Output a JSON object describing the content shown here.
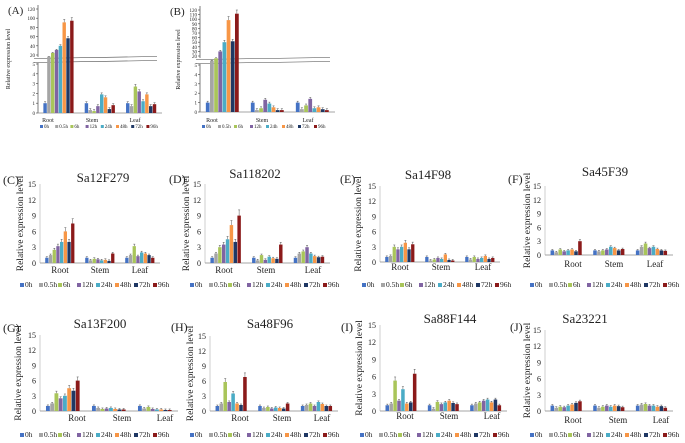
{
  "figure": {
    "y_label": "Relative expression level",
    "legend": [
      "0h",
      "0.5h",
      "6h",
      "12h",
      "24h",
      "48h",
      "72h",
      "96h"
    ],
    "series_colors": [
      "#4472C4",
      "#A5A5A5",
      "#A9C55A",
      "#8064A2",
      "#4BACC6",
      "#F79646",
      "#1F3864",
      "#8B1A1A"
    ]
  },
  "chart_data": [
    {
      "id": "A",
      "letter": "(A)",
      "title": "",
      "type": "bar",
      "broken_axis": true,
      "categories": [
        "Root",
        "Stem",
        "Leaf"
      ],
      "series": [
        {
          "name": "0h",
          "values": [
            1.0,
            1.0,
            1.0
          ]
        },
        {
          "name": "0.5h",
          "values": [
            6.0,
            0.3,
            0.7
          ]
        },
        {
          "name": "6h",
          "values": [
            15.0,
            0.2,
            2.7
          ]
        },
        {
          "name": "12h",
          "values": [
            22.0,
            0.7,
            2.2
          ]
        },
        {
          "name": "24h",
          "values": [
            32.0,
            1.9,
            1.2
          ]
        },
        {
          "name": "48h",
          "values": [
            88.0,
            1.6,
            1.9
          ]
        },
        {
          "name": "72h",
          "values": [
            50.0,
            0.4,
            0.7
          ]
        },
        {
          "name": "96h",
          "values": [
            92.0,
            0.8,
            0.9
          ]
        }
      ],
      "upper_ticks": [
        "20",
        "40",
        "60",
        "80",
        "100",
        "120"
      ],
      "lower_ticks": [
        "0",
        "1",
        "2",
        "3",
        "4",
        "5"
      ]
    },
    {
      "id": "B",
      "letter": "(B)",
      "title": "",
      "type": "bar",
      "broken_axis": true,
      "categories": [
        "Root",
        "Stem",
        "Leaf"
      ],
      "series": [
        {
          "name": "0h",
          "values": [
            1.0,
            1.0,
            1.0
          ]
        },
        {
          "name": "0.5h",
          "values": [
            10.0,
            0.2,
            0.3
          ]
        },
        {
          "name": "6h",
          "values": [
            15.0,
            0.4,
            0.7
          ]
        },
        {
          "name": "12h",
          "values": [
            30.0,
            1.3,
            1.4
          ]
        },
        {
          "name": "24h",
          "values": [
            50.0,
            0.9,
            0.4
          ]
        },
        {
          "name": "48h",
          "values": [
            98.0,
            0.5,
            0.5
          ]
        },
        {
          "name": "72h",
          "values": [
            52.0,
            0.2,
            0.3
          ]
        },
        {
          "name": "96h",
          "values": [
            112.0,
            0.2,
            0.2
          ]
        }
      ],
      "upper_ticks": [
        "20",
        "30",
        "40",
        "50",
        "60",
        "70",
        "80",
        "90",
        "100",
        "110",
        "120"
      ],
      "lower_ticks": [
        "0",
        "1",
        "2",
        "3",
        "4",
        "5"
      ]
    },
    {
      "id": "C",
      "letter": "(C)",
      "title": "Sa12F279",
      "type": "bar",
      "ylim": [
        0,
        15
      ],
      "yticks": [
        "0",
        "3",
        "6",
        "9",
        "12",
        "15"
      ],
      "categories": [
        "Root",
        "Stem",
        "Leaf"
      ],
      "series": [
        {
          "name": "0h",
          "values": [
            1.0,
            1.0,
            1.0
          ]
        },
        {
          "name": "0.5h",
          "values": [
            1.5,
            0.5,
            1.5
          ]
        },
        {
          "name": "6h",
          "values": [
            2.5,
            0.8,
            3.2
          ]
        },
        {
          "name": "12h",
          "values": [
            3.2,
            0.7,
            1.3
          ]
        },
        {
          "name": "24h",
          "values": [
            4.0,
            0.5,
            2.0
          ]
        },
        {
          "name": "48h",
          "values": [
            6.0,
            0.6,
            1.8
          ]
        },
        {
          "name": "72h",
          "values": [
            4.0,
            0.4,
            1.5
          ]
        },
        {
          "name": "96h",
          "values": [
            7.5,
            1.8,
            1.0
          ]
        }
      ]
    },
    {
      "id": "D",
      "letter": "(D)",
      "title": "Sa118202",
      "type": "bar",
      "ylim": [
        0,
        15
      ],
      "yticks": [
        "0",
        "3",
        "6",
        "9",
        "12",
        "15"
      ],
      "categories": [
        "Root",
        "Stem",
        "Leaf"
      ],
      "series": [
        {
          "name": "0h",
          "values": [
            1.0,
            1.0,
            1.0
          ]
        },
        {
          "name": "0.5h",
          "values": [
            1.8,
            0.5,
            1.8
          ]
        },
        {
          "name": "6h",
          "values": [
            3.0,
            1.5,
            2.2
          ]
        },
        {
          "name": "12h",
          "values": [
            3.5,
            0.6,
            3.0
          ]
        },
        {
          "name": "24h",
          "values": [
            4.5,
            1.2,
            1.8
          ]
        },
        {
          "name": "48h",
          "values": [
            7.2,
            0.9,
            1.3
          ]
        },
        {
          "name": "72h",
          "values": [
            4.0,
            0.8,
            1.1
          ]
        },
        {
          "name": "96h",
          "values": [
            9.0,
            3.5,
            1.2
          ]
        }
      ]
    },
    {
      "id": "E",
      "letter": "(E)",
      "title": "Sa14F98",
      "type": "bar",
      "ylim": [
        0,
        15
      ],
      "yticks": [
        "0",
        "3",
        "6",
        "9",
        "12",
        "15"
      ],
      "categories": [
        "Root",
        "Stem",
        "Leaf"
      ],
      "series": [
        {
          "name": "0h",
          "values": [
            1.0,
            1.0,
            1.0
          ]
        },
        {
          "name": "0.5h",
          "values": [
            1.2,
            0.3,
            0.5
          ]
        },
        {
          "name": "6h",
          "values": [
            3.0,
            0.5,
            1.0
          ]
        },
        {
          "name": "12h",
          "values": [
            2.5,
            0.8,
            0.6
          ]
        },
        {
          "name": "24h",
          "values": [
            3.0,
            0.6,
            0.8
          ]
        },
        {
          "name": "48h",
          "values": [
            3.8,
            1.5,
            1.2
          ]
        },
        {
          "name": "72h",
          "values": [
            2.5,
            0.4,
            0.6
          ]
        },
        {
          "name": "96h",
          "values": [
            3.5,
            0.3,
            0.8
          ]
        }
      ]
    },
    {
      "id": "F",
      "letter": "(F)",
      "title": "Sa45F39",
      "type": "bar",
      "ylim": [
        0,
        15
      ],
      "yticks": [
        "0",
        "3",
        "6",
        "9",
        "12",
        "15"
      ],
      "categories": [
        "Root",
        "Stem",
        "Leaf"
      ],
      "series": [
        {
          "name": "0h",
          "values": [
            1.0,
            1.0,
            1.0
          ]
        },
        {
          "name": "0.5h",
          "values": [
            0.6,
            0.8,
            1.8
          ]
        },
        {
          "name": "6h",
          "values": [
            1.2,
            1.0,
            2.5
          ]
        },
        {
          "name": "12h",
          "values": [
            0.8,
            1.2,
            1.5
          ]
        },
        {
          "name": "24h",
          "values": [
            1.0,
            1.8,
            1.8
          ]
        },
        {
          "name": "48h",
          "values": [
            1.2,
            1.5,
            1.3
          ]
        },
        {
          "name": "72h",
          "values": [
            0.8,
            1.0,
            1.0
          ]
        },
        {
          "name": "96h",
          "values": [
            3.0,
            1.3,
            0.9
          ]
        }
      ]
    },
    {
      "id": "G",
      "letter": "(G)",
      "title": "Sa13F200",
      "type": "bar",
      "ylim": [
        0,
        15
      ],
      "yticks": [
        "0",
        "3",
        "6",
        "9",
        "12",
        "15"
      ],
      "categories": [
        "Root",
        "Stem",
        "Leaf"
      ],
      "series": [
        {
          "name": "0h",
          "values": [
            1.0,
            1.0,
            1.0
          ]
        },
        {
          "name": "0.5h",
          "values": [
            1.5,
            0.6,
            0.5
          ]
        },
        {
          "name": "6h",
          "values": [
            3.5,
            0.4,
            0.8
          ]
        },
        {
          "name": "12h",
          "values": [
            2.5,
            0.5,
            0.4
          ]
        },
        {
          "name": "24h",
          "values": [
            3.0,
            0.6,
            0.3
          ]
        },
        {
          "name": "48h",
          "values": [
            4.5,
            0.4,
            0.3
          ]
        },
        {
          "name": "72h",
          "values": [
            4.0,
            0.3,
            0.2
          ]
        },
        {
          "name": "96h",
          "values": [
            6.0,
            0.3,
            0.2
          ]
        }
      ]
    },
    {
      "id": "H",
      "letter": "(H)",
      "title": "Sa48F96",
      "type": "bar",
      "ylim": [
        0,
        15
      ],
      "yticks": [
        "0",
        "3",
        "6",
        "9",
        "12",
        "15"
      ],
      "categories": [
        "Root",
        "Stem",
        "Leaf"
      ],
      "series": [
        {
          "name": "0h",
          "values": [
            1.0,
            1.0,
            1.0
          ]
        },
        {
          "name": "0.5h",
          "values": [
            1.5,
            0.6,
            1.2
          ]
        },
        {
          "name": "6h",
          "values": [
            5.8,
            0.8,
            1.5
          ]
        },
        {
          "name": "12h",
          "values": [
            1.8,
            0.5,
            1.0
          ]
        },
        {
          "name": "24h",
          "values": [
            3.5,
            0.7,
            1.8
          ]
        },
        {
          "name": "48h",
          "values": [
            1.5,
            0.6,
            1.4
          ]
        },
        {
          "name": "72h",
          "values": [
            1.2,
            0.5,
            1.0
          ]
        },
        {
          "name": "96h",
          "values": [
            6.8,
            1.5,
            1.0
          ]
        }
      ]
    },
    {
      "id": "I",
      "letter": "(I)",
      "title": "Sa88F144",
      "type": "bar",
      "ylim": [
        0,
        15
      ],
      "yticks": [
        "0",
        "3",
        "6",
        "9",
        "12",
        "15"
      ],
      "categories": [
        "Root",
        "Stem",
        "Leaf"
      ],
      "series": [
        {
          "name": "0h",
          "values": [
            1.0,
            1.0,
            1.0
          ]
        },
        {
          "name": "0.5h",
          "values": [
            1.3,
            0.4,
            1.3
          ]
        },
        {
          "name": "6h",
          "values": [
            5.3,
            1.6,
            1.5
          ]
        },
        {
          "name": "12h",
          "values": [
            1.8,
            1.2,
            1.8
          ]
        },
        {
          "name": "24h",
          "values": [
            3.8,
            1.5,
            2.0
          ]
        },
        {
          "name": "48h",
          "values": [
            1.3,
            1.8,
            1.5
          ]
        },
        {
          "name": "72h",
          "values": [
            1.5,
            1.4,
            2.0
          ]
        },
        {
          "name": "96h",
          "values": [
            6.5,
            1.2,
            1.0
          ]
        }
      ]
    },
    {
      "id": "J",
      "letter": "(J)",
      "title": "Sa23221",
      "type": "bar",
      "ylim": [
        0,
        15
      ],
      "yticks": [
        "0",
        "3",
        "6",
        "9",
        "12",
        "15"
      ],
      "categories": [
        "Root",
        "Stem",
        "Leaf"
      ],
      "series": [
        {
          "name": "0h",
          "values": [
            1.0,
            1.0,
            1.0
          ]
        },
        {
          "name": "0.5h",
          "values": [
            0.6,
            0.6,
            1.2
          ]
        },
        {
          "name": "6h",
          "values": [
            0.8,
            0.8,
            1.3
          ]
        },
        {
          "name": "12h",
          "values": [
            0.7,
            1.0,
            1.0
          ]
        },
        {
          "name": "24h",
          "values": [
            1.0,
            0.8,
            1.0
          ]
        },
        {
          "name": "48h",
          "values": [
            1.2,
            1.0,
            0.8
          ]
        },
        {
          "name": "72h",
          "values": [
            1.5,
            0.9,
            0.9
          ]
        },
        {
          "name": "96h",
          "values": [
            1.8,
            0.7,
            0.6
          ]
        }
      ]
    }
  ]
}
